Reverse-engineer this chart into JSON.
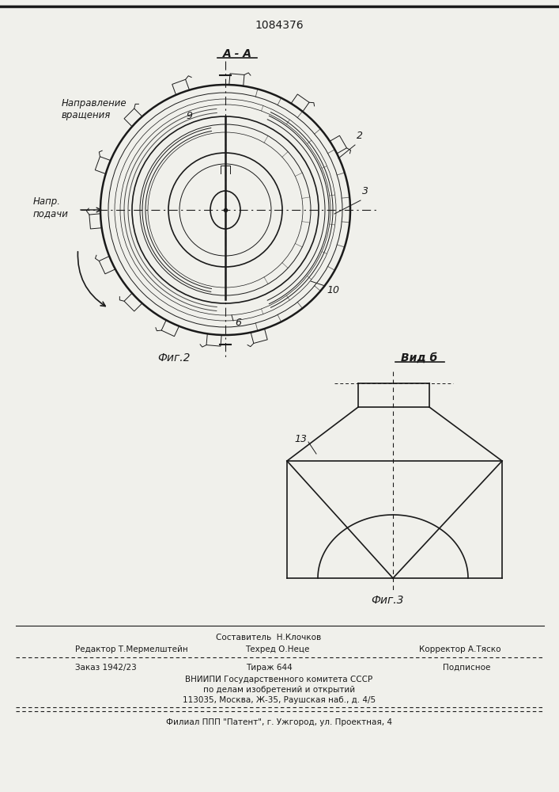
{
  "patent_number": "1084376",
  "fig2_label": "А - А",
  "fig2_caption": "Фиг.2",
  "fig3_caption": "Фиг.3",
  "vidb_label": "Вид б",
  "label_napravlenie": "Направление\nвращения",
  "label_napr_podachi": "Напр.\nподачи",
  "label_2": "2",
  "label_3": "3",
  "label_6": "6",
  "label_9": "9",
  "label_10": "10",
  "label_13": "13",
  "footer_sostavitel": "Составитель  Н.Клочков",
  "footer_editor": "Редактор Т.Мермелштейн",
  "footer_techred": "Техред О.Неце",
  "footer_corrector": "Корректор А.Тяско",
  "footer_order": "Заказ 1942/23",
  "footer_tirazh": "Тираж 644",
  "footer_podpisnoe": "Подписное",
  "footer_vniiipi": "ВНИИПИ Государственного комитета СССР",
  "footer_po": "по делам изобретений и открытий",
  "footer_address": "113035, Москва, Ж-35, Раушская наб., д. 4/5",
  "footer_filial": "Филиал ППП \"Патент\", г. Ужгород, ул. Проектная, 4",
  "bg_color": "#f0f0eb",
  "line_color": "#1a1a1a"
}
